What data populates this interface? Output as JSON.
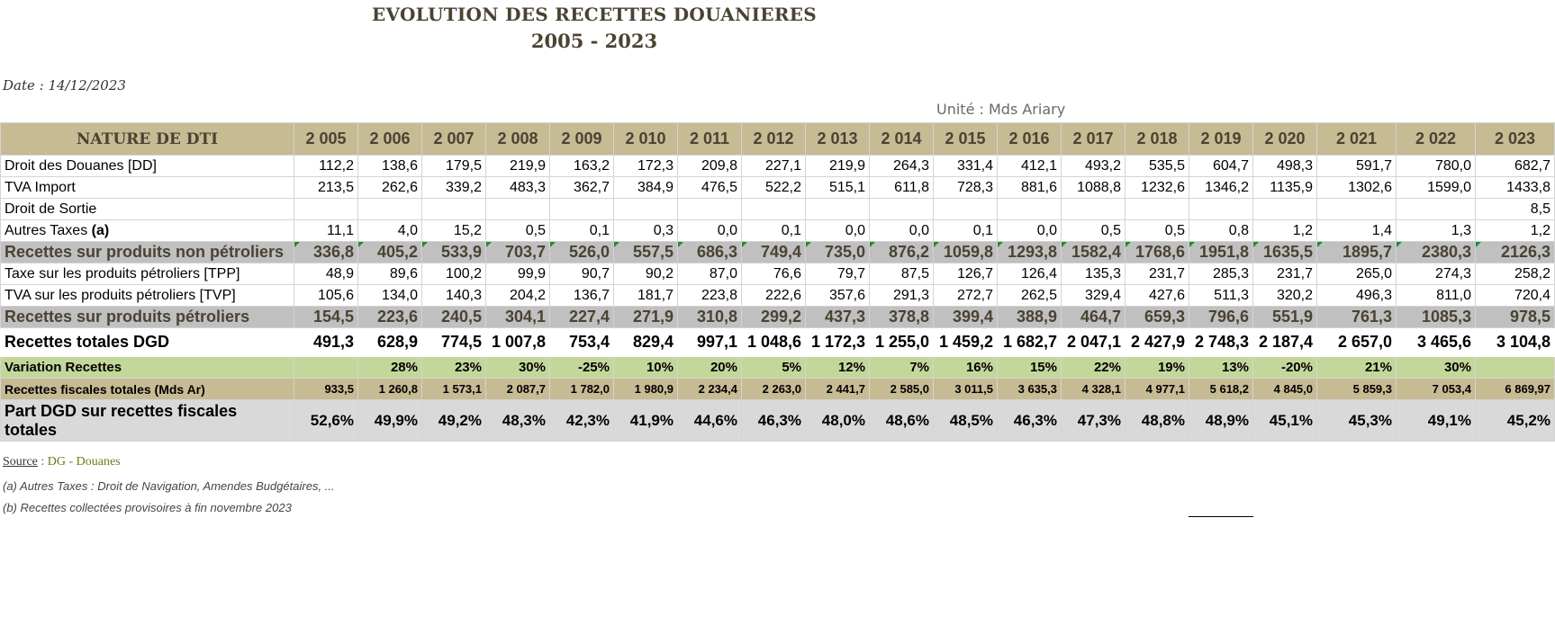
{
  "title": "EVOLUTION DES RECETTES DOUANIERES",
  "subtitle": "2005 - 2023",
  "date": "Date : 14/12/2023",
  "unit": "Unité : Mds Ariary",
  "header": {
    "label": "NATURE DE DTI",
    "years": [
      "2 005",
      "2 006",
      "2 007",
      "2 008",
      "2 009",
      "2 010",
      "2 011",
      "2 012",
      "2 013",
      "2 014",
      "2 015",
      "2 016",
      "2 017",
      "2 018",
      "2 019",
      "2 020",
      "2 021",
      "2 022",
      "2 023"
    ]
  },
  "rows": [
    {
      "type": "normal",
      "label": "Droit des Douanes [DD]",
      "values": [
        "112,2",
        "138,6",
        "179,5",
        "219,9",
        "163,2",
        "172,3",
        "209,8",
        "227,1",
        "219,9",
        "264,3",
        "331,4",
        "412,1",
        "493,2",
        "535,5",
        "604,7",
        "498,3",
        "591,7",
        "780,0",
        "682,7"
      ]
    },
    {
      "type": "normal",
      "label": "TVA Import",
      "values": [
        "213,5",
        "262,6",
        "339,2",
        "483,3",
        "362,7",
        "384,9",
        "476,5",
        "522,2",
        "515,1",
        "611,8",
        "728,3",
        "881,6",
        "1088,8",
        "1232,6",
        "1346,2",
        "1135,9",
        "1302,6",
        "1599,0",
        "1433,8"
      ]
    },
    {
      "type": "normal",
      "label": "Droit de Sortie",
      "values": [
        "",
        "",
        "",
        "",
        "",
        "",
        "",
        "",
        "",
        "",
        "",
        "",
        "",
        "",
        "",
        "",
        "",
        "",
        "8,5"
      ]
    },
    {
      "type": "normal",
      "label": "Autres Taxes ",
      "label_bold": "(a)",
      "values": [
        "11,1",
        "4,0",
        "15,2",
        "0,5",
        "0,1",
        "0,3",
        "0,0",
        "0,1",
        "0,0",
        "0,0",
        "0,1",
        "0,0",
        "0,5",
        "0,5",
        "0,8",
        "1,2",
        "1,4",
        "1,3",
        "1,2"
      ]
    },
    {
      "type": "sub",
      "label": "Recettes sur produits non pétroliers",
      "values": [
        "336,8",
        "405,2",
        "533,9",
        "703,7",
        "526,0",
        "557,5",
        "686,3",
        "749,4",
        "735,0",
        "876,2",
        "1059,8",
        "1293,8",
        "1582,4",
        "1768,6",
        "1951,8",
        "1635,5",
        "1895,7",
        "2380,3",
        "2126,3"
      ]
    },
    {
      "type": "normal",
      "label": "Taxe sur les produits pétroliers [TPP]",
      "values": [
        "48,9",
        "89,6",
        "100,2",
        "99,9",
        "90,7",
        "90,2",
        "87,0",
        "76,6",
        "79,7",
        "87,5",
        "126,7",
        "126,4",
        "135,3",
        "231,7",
        "285,3",
        "231,7",
        "265,0",
        "274,3",
        "258,2"
      ]
    },
    {
      "type": "normal",
      "label": "TVA sur les produits pétroliers [TVP]",
      "values": [
        "105,6",
        "134,0",
        "140,3",
        "204,2",
        "136,7",
        "181,7",
        "223,8",
        "222,6",
        "357,6",
        "291,3",
        "272,7",
        "262,5",
        "329,4",
        "427,6",
        "511,3",
        "320,2",
        "496,3",
        "811,0",
        "720,4"
      ]
    },
    {
      "type": "sub nomark",
      "label": "Recettes sur produits pétroliers",
      "values": [
        "154,5",
        "223,6",
        "240,5",
        "304,1",
        "227,4",
        "271,9",
        "310,8",
        "299,2",
        "437,3",
        "378,8",
        "399,4",
        "388,9",
        "464,7",
        "659,3",
        "796,6",
        "551,9",
        "761,3",
        "1085,3",
        "978,5"
      ]
    },
    {
      "type": "total",
      "label": "Recettes totales DGD",
      "values": [
        "491,3",
        "628,9",
        "774,5",
        "1 007,8",
        "753,4",
        "829,4",
        "997,1",
        "1 048,6",
        "1 172,3",
        "1 255,0",
        "1 459,2",
        "1 682,7",
        "2 047,1",
        "2 427,9",
        "2 748,3",
        "2 187,4",
        "2 657,0",
        "3 465,6",
        "3 104,8"
      ]
    },
    {
      "type": "var",
      "label": "Variation Recettes",
      "values": [
        "",
        "28%",
        "23%",
        "30%",
        "-25%",
        "10%",
        "20%",
        "5%",
        "12%",
        "7%",
        "16%",
        "15%",
        "22%",
        "19%",
        "13%",
        "-20%",
        "21%",
        "30%",
        ""
      ]
    },
    {
      "type": "fisc",
      "label": "Recettes fiscales totales (Mds Ar)",
      "values": [
        "933,5",
        "1 260,8",
        "1 573,1",
        "2 087,7",
        "1 782,0",
        "1 980,9",
        "2 234,4",
        "2 263,0",
        "2 441,7",
        "2 585,0",
        "3 011,5",
        "3 635,3",
        "4 328,1",
        "4 977,1",
        "5 618,2",
        "4 845,0",
        "5 859,3",
        "7 053,4",
        "6 869,97"
      ]
    },
    {
      "type": "part",
      "label": "Part DGD sur recettes fiscales totales",
      "values": [
        "52,6%",
        "49,9%",
        "49,2%",
        "48,3%",
        "42,3%",
        "41,9%",
        "44,6%",
        "46,3%",
        "48,0%",
        "48,6%",
        "48,5%",
        "46,3%",
        "47,3%",
        "48,8%",
        "48,9%",
        "45,1%",
        "45,3%",
        "49,1%",
        "45,2%"
      ]
    }
  ],
  "source": {
    "label": "Source",
    "text": " : DG - Douanes"
  },
  "notes": [
    "(a) Autres Taxes : Droit de Navigation, Amendes Budgétaires, ...",
    "(b) Recettes collectées provisoires à fin novembre 2023"
  ]
}
